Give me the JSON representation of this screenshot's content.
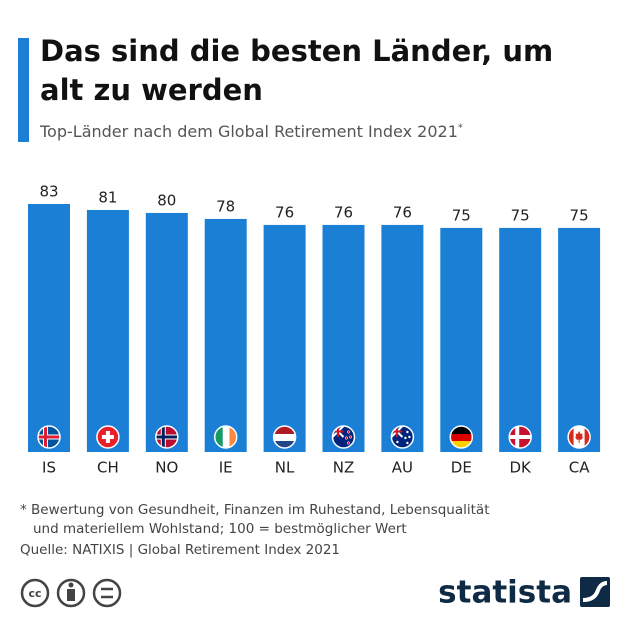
{
  "chart_data": {
    "type": "bar",
    "title": "Das sind die besten Länder, um alt zu werden",
    "subtitle": "Top-Länder nach dem Global Retirement Index 2021",
    "subtitle_mark": "*",
    "categories": [
      "IS",
      "CH",
      "NO",
      "IE",
      "NL",
      "NZ",
      "AU",
      "DE",
      "DK",
      "CA"
    ],
    "values": [
      83,
      81,
      80,
      78,
      76,
      76,
      76,
      75,
      75,
      75
    ],
    "color": "#1b7fd6",
    "footnote": [
      "* Bewertung von Gesundheit, Finanzen im Ruhestand, Lebensqualität",
      "und materiellem Wohlstand; 100 = bestmöglicher Wert"
    ],
    "source": "Quelle: NATIXIS | Global Retirement Index 2021",
    "brand": "statista"
  }
}
